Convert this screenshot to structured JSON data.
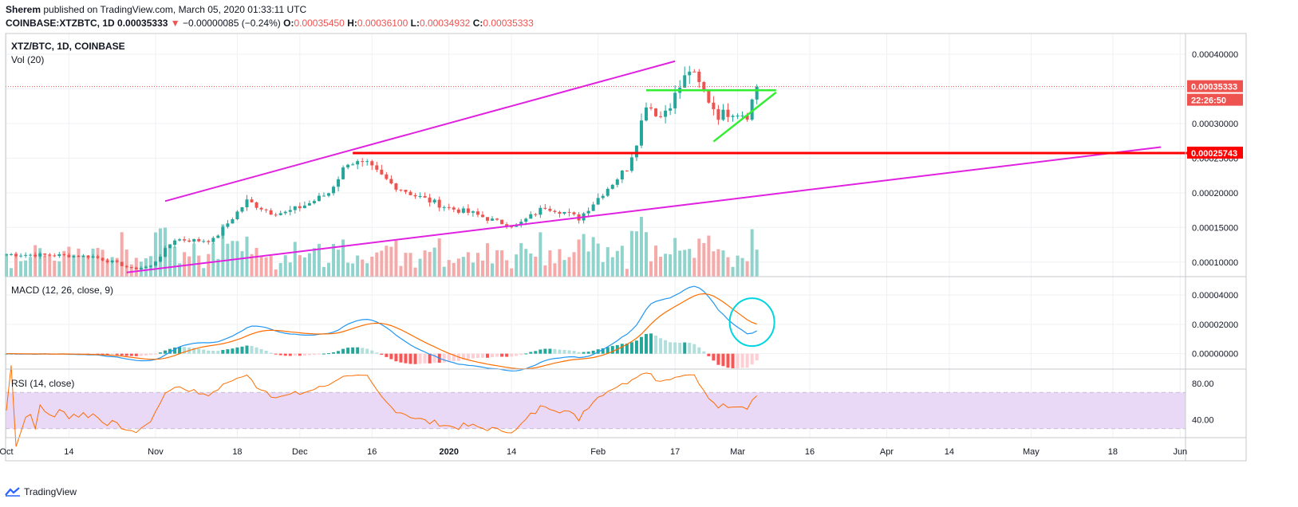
{
  "header": {
    "publisher": "Sherem",
    "published_text": " published on TradingView.com, March 05, 2020 01:33:11 UTC",
    "symbol_line": "COINBASE:XTZBTC, 1D",
    "price": "0.00035333",
    "change_arrow": "▼",
    "change": "−0.00000085 (−0.24%)",
    "o_label": "O:",
    "o": "0.00035450",
    "h_label": "H:",
    "h": "0.00036100",
    "l_label": "L:",
    "l": "0.00034932",
    "c_label": "C:",
    "c": "0.00035333"
  },
  "panes": {
    "main_title": "XTZ/BTC, 1D, COINBASE",
    "vol_label": "Vol (20)",
    "macd_label": "MACD (12, 26, close, 9)",
    "rsi_label": "RSI (14, close)"
  },
  "price_axis": {
    "ticks": [
      "0.00040000",
      "0.00035000",
      "0.00030000",
      "0.00025000",
      "0.00020000",
      "0.00015000",
      "0.00010000"
    ],
    "tag_price": "0.00035333",
    "tag_countdown": "22:26:50",
    "tag_level": "0.00025743"
  },
  "macd_axis": {
    "ticks": [
      "0.00004000",
      "0.00002000",
      "0.00000000"
    ]
  },
  "rsi_axis": {
    "ticks": [
      "80.00",
      "40.00"
    ]
  },
  "time_axis": {
    "labels": [
      "Oct",
      "14",
      "Nov",
      "18",
      "Dec",
      "16",
      "2020",
      "14",
      "Feb",
      "17",
      "Mar",
      "16",
      "Apr",
      "14",
      "May",
      "18",
      "Jun"
    ],
    "label_days": [
      0,
      13,
      31,
      48,
      61,
      76,
      92,
      105,
      123,
      139,
      152,
      167,
      183,
      196,
      213,
      230,
      244
    ]
  },
  "branding": {
    "name": "TradingView"
  },
  "colors": {
    "up": "#26a69a",
    "down": "#ef5350",
    "vol_up": "#8fd3cc",
    "vol_down": "#f5a9a8",
    "magenta": "#e021e0",
    "resistance": "#ff0000",
    "triangle": "#33ee33",
    "macd": "#2196f3",
    "signal": "#ff6d00",
    "rsi": "#ff6d00",
    "rsi_band": "#e9d8f6",
    "circle": "#00d5e0"
  },
  "chart_data": {
    "type": "candlestick",
    "title": "XTZ/BTC, 1D, COINBASE",
    "x_unit": "days since Oct 1 2019",
    "price_keypoints": [
      {
        "d": 0,
        "p": 0.000111
      },
      {
        "d": 10,
        "p": 0.00011
      },
      {
        "d": 18,
        "p": 0.000108
      },
      {
        "d": 24,
        "p": 9.6e-05
      },
      {
        "d": 26,
        "p": 9e-05
      },
      {
        "d": 30,
        "p": 9.4e-05
      },
      {
        "d": 35,
        "p": 0.000133
      },
      {
        "d": 40,
        "p": 0.000131
      },
      {
        "d": 43,
        "p": 0.000132
      },
      {
        "d": 50,
        "p": 0.000188
      },
      {
        "d": 55,
        "p": 0.000172
      },
      {
        "d": 58,
        "p": 0.000171
      },
      {
        "d": 63,
        "p": 0.000185
      },
      {
        "d": 67,
        "p": 0.0002
      },
      {
        "d": 71,
        "p": 0.000245
      },
      {
        "d": 75,
        "p": 0.00024
      },
      {
        "d": 80,
        "p": 0.000213
      },
      {
        "d": 85,
        "p": 0.000196
      },
      {
        "d": 92,
        "p": 0.000178
      },
      {
        "d": 97,
        "p": 0.00017
      },
      {
        "d": 102,
        "p": 0.000158
      },
      {
        "d": 106,
        "p": 0.000152
      },
      {
        "d": 112,
        "p": 0.00018
      },
      {
        "d": 116,
        "p": 0.000172
      },
      {
        "d": 119,
        "p": 0.000163
      },
      {
        "d": 124,
        "p": 0.0002
      },
      {
        "d": 129,
        "p": 0.000236
      },
      {
        "d": 131,
        "p": 0.000275
      },
      {
        "d": 133,
        "p": 0.00033
      },
      {
        "d": 136,
        "p": 0.00031
      },
      {
        "d": 139,
        "p": 0.00034
      },
      {
        "d": 142,
        "p": 0.000378
      },
      {
        "d": 145,
        "p": 0.000345
      },
      {
        "d": 148,
        "p": 0.000312
      },
      {
        "d": 151,
        "p": 0.000318
      },
      {
        "d": 154,
        "p": 0.000313
      },
      {
        "d": 156,
        "p": 0.000353
      }
    ],
    "volume_max": 1,
    "trendlines": [
      {
        "name": "upper channel",
        "from": {
          "d": 33,
          "p": 0.000188
        },
        "to": {
          "d": 139,
          "p": 0.00039
        }
      },
      {
        "name": "lower channel",
        "from": {
          "d": 25,
          "p": 8.5e-05
        },
        "to": {
          "d": 240,
          "p": 0.000266
        }
      },
      {
        "name": "resistance",
        "from": {
          "d": 72,
          "p": 0.00025743
        },
        "to": {
          "d": 247,
          "p": 0.00025743
        }
      },
      {
        "name": "triangle top",
        "from": {
          "d": 133,
          "p": 0.000348
        },
        "to": {
          "d": 160,
          "p": 0.000348
        }
      },
      {
        "name": "triangle bottom",
        "from": {
          "d": 147,
          "p": 0.000274
        },
        "to": {
          "d": 160,
          "p": 0.000345
        }
      }
    ],
    "price_ylim": [
      7.9e-05,
      0.00043
    ],
    "macd_ylim": [
      -1.05e-05,
      5.2e-05
    ],
    "rsi_ylim": [
      20,
      95
    ],
    "rsi_band": [
      30,
      70
    ],
    "grid": true,
    "legend": "none"
  }
}
